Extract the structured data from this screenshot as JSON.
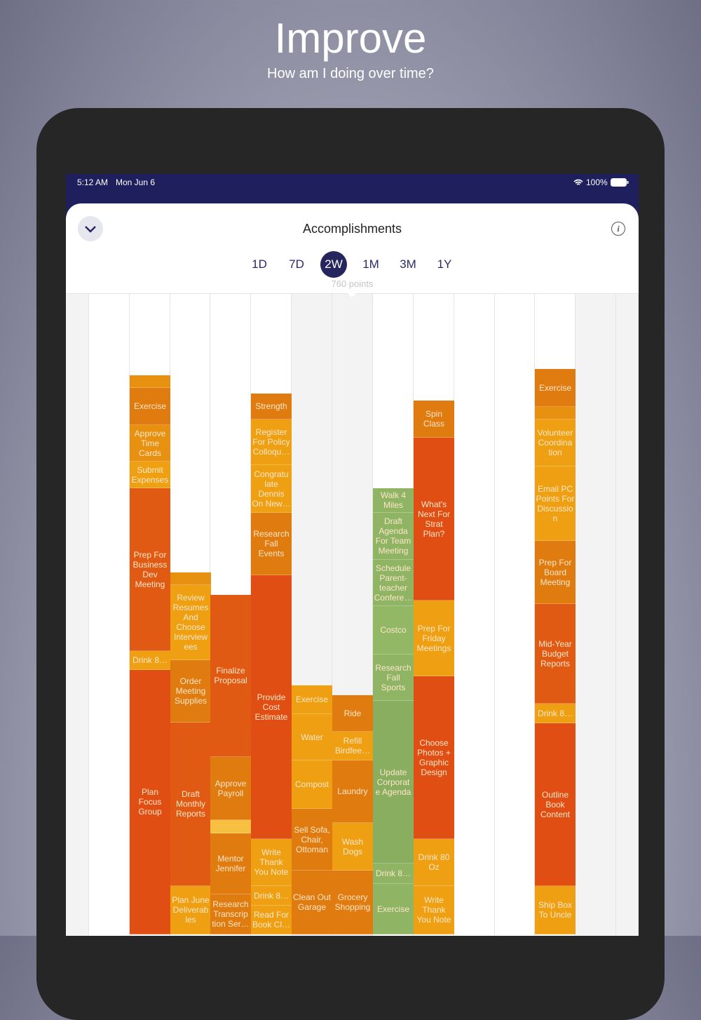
{
  "header": {
    "title": "Improve",
    "subtitle": "How am I doing over time?"
  },
  "status_bar": {
    "time": "5:12 AM",
    "date": "Mon Jun 6",
    "battery": "100%"
  },
  "sheet": {
    "title": "Accomplishments",
    "tabs": [
      "1D",
      "7D",
      "2W",
      "1M",
      "3M",
      "1Y"
    ],
    "selected_tab": 2,
    "points": "760 points"
  },
  "columns": [
    {
      "blocks": [
        "Exercise",
        "Approve Time Cards",
        "Submit Expenses",
        "Prep For Business Dev Meeting",
        "Drink 8…",
        "Plan Focus Group"
      ]
    },
    {
      "blocks": [
        "Review Resumes And Choose Interview ees",
        "Order Meeting Supplies",
        "Draft Monthly Reports",
        "Plan June Deliverab les"
      ]
    },
    {
      "blocks": [
        "Finalize Proposal",
        "Approve Payroll",
        "Mentor Jennifer",
        "Research Transcrip tion Ser…"
      ]
    },
    {
      "blocks": [
        "Strength",
        "Register For Policy Colloqu…",
        "Congratu late Dennis On New…",
        "Research Fall Events",
        "Provide Cost Estimate",
        "Write Thank You Note",
        "Drink 8…",
        "Read For Book Cl…"
      ]
    },
    {
      "blocks": [
        "Exercise",
        "Water",
        "Compost",
        "Sell Sofa, Chair, Ottoman",
        "Clean Out Garage"
      ]
    },
    {
      "blocks": [
        "Ride",
        "Refill Birdfee…",
        "Laundry",
        "Wash Dogs",
        "Grocery Shopping"
      ]
    },
    {
      "blocks": [
        "Walk 4 Miles",
        "Draft Agenda For Team Meeting",
        "Schedule Parent- teacher Confere…",
        "Costco",
        "Research Fall Sports",
        "Update Corporat e Agenda",
        "Drink 8…",
        "Exercise"
      ]
    },
    {
      "blocks": [
        "Spin Class",
        "What's Next For Strat Plan?",
        "Prep For Friday Meetings",
        "Choose Photos + Graphic Design",
        "Drink 80 Oz",
        "Write Thank You Note"
      ]
    },
    {
      "blocks": [
        "Exercise",
        "Volunteer Coordina tion",
        "Email PC Points For Discussio n",
        "Prep For Board Meeting",
        "Mid-Year Budget Reports",
        "Drink 8…",
        "Outline Book Content",
        "Ship Box To Uncle"
      ]
    }
  ]
}
